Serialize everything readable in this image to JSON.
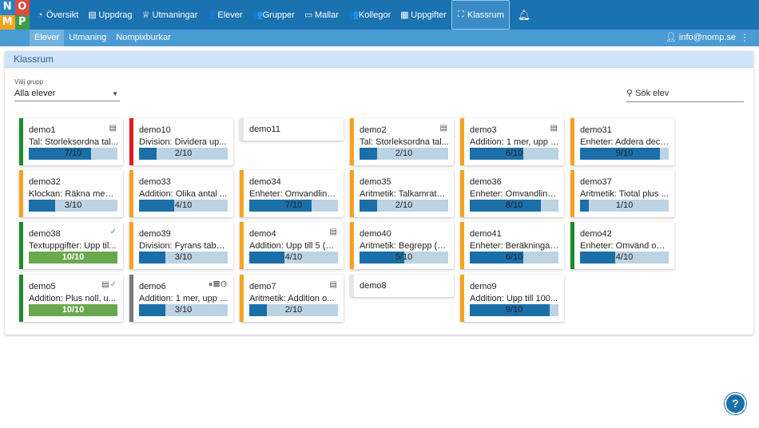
{
  "logo": {
    "letters": [
      "N",
      "O",
      "M",
      "P"
    ]
  },
  "nav": {
    "items": [
      {
        "label": "Översikt",
        "icon": "dashboard-icon",
        "glyph": "◔"
      },
      {
        "label": "Uppdrag",
        "icon": "book-icon",
        "glyph": "▤"
      },
      {
        "label": "Utmaningar",
        "icon": "trophy-icon",
        "glyph": "♕"
      },
      {
        "label": "Elever",
        "icon": "user-icon",
        "glyph": "👤"
      },
      {
        "label": "Grupper",
        "icon": "users-icon",
        "glyph": "👥"
      },
      {
        "label": "Mallar",
        "icon": "folder-icon",
        "glyph": "▭"
      },
      {
        "label": "Kollegor",
        "icon": "user-group-icon",
        "glyph": "👥"
      },
      {
        "label": "Uppgifter",
        "icon": "table-icon",
        "glyph": "▦"
      },
      {
        "label": "Klassrum",
        "icon": "classroom-icon",
        "glyph": "⛶"
      }
    ],
    "bell_icon": "bell-icon"
  },
  "subnav": {
    "items": [
      "Elever",
      "Utmaning",
      "Nompixburkar"
    ],
    "active": 0,
    "user": "info@nomp.se"
  },
  "panel": {
    "title": "Klassrum"
  },
  "filter": {
    "label": "Välj grupp",
    "value": "Alla elever"
  },
  "search": {
    "placeholder": "Sök elev"
  },
  "colors": {
    "orange": "#f4a321",
    "green": "#1e8a2f",
    "red": "#e11b22",
    "gray": "#7a7a7a",
    "none": "#e6e6e6",
    "progress": "#1b6fa9",
    "done": "#6aa84f"
  },
  "students": [
    {
      "name": "demo1",
      "task": "Tal: Storleksordna tal...",
      "progress": "7/10",
      "status": "green",
      "icons": "book"
    },
    {
      "name": "demo10",
      "task": "Division: Dividera up...",
      "progress": "2/10",
      "status": "red",
      "icons": ""
    },
    {
      "name": "demo11",
      "task": "",
      "progress": "",
      "status": "none",
      "icons": ""
    },
    {
      "name": "demo2",
      "task": "Tal: Storleksordna tal...",
      "progress": "2/10",
      "status": "orange",
      "icons": "book"
    },
    {
      "name": "demo3",
      "task": "Addition: 1 mer, upp t...",
      "progress": "6/10",
      "status": "orange",
      "icons": "book"
    },
    {
      "name": "demo31",
      "task": "Enheter: Addera decil...",
      "progress": "9/10",
      "status": "orange",
      "icons": ""
    },
    {
      "name": "demo32",
      "task": "Klockan: Räkna med ...",
      "progress": "3/10",
      "status": "orange",
      "icons": ""
    },
    {
      "name": "demo33",
      "task": "Addition: Olika antal ...",
      "progress": "4/10",
      "status": "orange",
      "icons": ""
    },
    {
      "name": "demo34",
      "task": "Enheter: Omvandling ...",
      "progress": "7/10",
      "status": "orange",
      "icons": ""
    },
    {
      "name": "demo35",
      "task": "Aritmetik: Talkamrater...",
      "progress": "2/10",
      "status": "orange",
      "icons": ""
    },
    {
      "name": "demo36",
      "task": "Enheter: Omvandling ...",
      "progress": "8/10",
      "status": "orange",
      "icons": ""
    },
    {
      "name": "demo37",
      "task": "Aritmetik: Tiotal plus ...",
      "progress": "1/10",
      "status": "orange",
      "icons": ""
    },
    {
      "name": "demo38",
      "task": "Textuppgifter: Upp til...",
      "progress": "10/10",
      "status": "green",
      "icons": "check"
    },
    {
      "name": "demo39",
      "task": "Division: Fyrans tabel...",
      "progress": "3/10",
      "status": "orange",
      "icons": ""
    },
    {
      "name": "demo4",
      "task": "Addition: Upp till 5 (1A)",
      "progress": "4/10",
      "status": "orange",
      "icons": "book"
    },
    {
      "name": "demo40",
      "task": "Aritmetik: Begrepp (4...",
      "progress": "5/10",
      "status": "orange",
      "icons": ""
    },
    {
      "name": "demo41",
      "task": "Enheter: Beräkningar...",
      "progress": "6/10",
      "status": "orange",
      "icons": ""
    },
    {
      "name": "demo42",
      "task": "Enheter: Omvänd om...",
      "progress": "4/10",
      "status": "green",
      "icons": ""
    },
    {
      "name": "demo5",
      "task": "Addition: Plus noll, u...",
      "progress": "10/10",
      "status": "green",
      "icons": "book-check"
    },
    {
      "name": "demo6",
      "task": "Addition: 1 mer, upp t...",
      "progress": "3/10",
      "status": "gray",
      "icons": "pause-book-clock"
    },
    {
      "name": "demo7",
      "task": "Aritmetik: Addition o...",
      "progress": "2/10",
      "status": "orange",
      "icons": "book"
    },
    {
      "name": "demo8",
      "task": "",
      "progress": "",
      "status": "none",
      "icons": ""
    },
    {
      "name": "demo9",
      "task": "Addition: Upp till 100...",
      "progress": "9/10",
      "status": "orange",
      "icons": ""
    }
  ]
}
